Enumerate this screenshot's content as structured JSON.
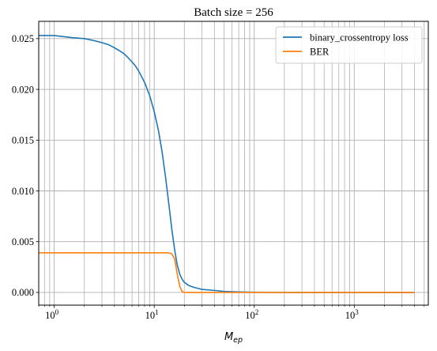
{
  "chart_data": {
    "type": "line",
    "title": "Batch size = 256",
    "xlabel_base": "M",
    "xlabel_sub": "ep",
    "ylabel": "",
    "xscale": "log",
    "xlim": [
      0.7,
      5500
    ],
    "ylim": [
      -0.00125,
      0.0267
    ],
    "grid": true,
    "grid_minor_x": true,
    "legend_position": "top-right",
    "yticks": [
      {
        "value": 0.0,
        "label": "0.000"
      },
      {
        "value": 0.005,
        "label": "0.005"
      },
      {
        "value": 0.01,
        "label": "0.010"
      },
      {
        "value": 0.015,
        "label": "0.015"
      },
      {
        "value": 0.02,
        "label": "0.020"
      },
      {
        "value": 0.025,
        "label": "0.025"
      }
    ],
    "xticks": [
      {
        "value": 1,
        "base": "10",
        "exp": "0"
      },
      {
        "value": 10,
        "base": "10",
        "exp": "1"
      },
      {
        "value": 100,
        "base": "10",
        "exp": "2"
      },
      {
        "value": 1000,
        "base": "10",
        "exp": "3"
      }
    ],
    "series": [
      {
        "name": "binary_crossentropy loss",
        "color": "#1f77b4",
        "points": [
          [
            0.7,
            0.0253
          ],
          [
            1.0,
            0.0253
          ],
          [
            1.5,
            0.0251
          ],
          [
            2.0,
            0.025
          ],
          [
            2.5,
            0.0248
          ],
          [
            3.0,
            0.0246
          ],
          [
            3.5,
            0.0244
          ],
          [
            4.0,
            0.0241
          ],
          [
            4.5,
            0.0238
          ],
          [
            5.0,
            0.0235
          ],
          [
            5.5,
            0.0231
          ],
          [
            6.0,
            0.0227
          ],
          [
            6.5,
            0.0223
          ],
          [
            7.0,
            0.0218
          ],
          [
            8.0,
            0.0207
          ],
          [
            9.0,
            0.0194
          ],
          [
            10.0,
            0.0178
          ],
          [
            11.0,
            0.016
          ],
          [
            12.0,
            0.0138
          ],
          [
            13.0,
            0.0113
          ],
          [
            14.0,
            0.0087
          ],
          [
            15.0,
            0.0062
          ],
          [
            16.0,
            0.0042
          ],
          [
            17.0,
            0.0027
          ],
          [
            18.0,
            0.0018
          ],
          [
            19.0,
            0.0013
          ],
          [
            20.0,
            0.001
          ],
          [
            22.0,
            0.0007
          ],
          [
            25.0,
            0.0005
          ],
          [
            30.0,
            0.0003
          ],
          [
            40.0,
            0.0002
          ],
          [
            50.0,
            0.0001
          ],
          [
            70.0,
            5e-05
          ],
          [
            100.0,
            2e-05
          ],
          [
            300.0,
            0.0
          ],
          [
            1000.0,
            0.0
          ],
          [
            4000.0,
            0.0
          ]
        ]
      },
      {
        "name": "BER",
        "color": "#ff7f0e",
        "points": [
          [
            0.7,
            0.0039
          ],
          [
            1.0,
            0.0039
          ],
          [
            10.0,
            0.0039
          ],
          [
            14.0,
            0.0039
          ],
          [
            15.0,
            0.0038
          ],
          [
            16.0,
            0.0033
          ],
          [
            17.0,
            0.0018
          ],
          [
            18.0,
            0.0006
          ],
          [
            19.0,
            0.0001
          ],
          [
            20.0,
            0.0
          ],
          [
            30.0,
            0.0
          ],
          [
            100.0,
            0.0
          ],
          [
            1000.0,
            0.0
          ],
          [
            4000.0,
            0.0
          ]
        ]
      }
    ]
  }
}
